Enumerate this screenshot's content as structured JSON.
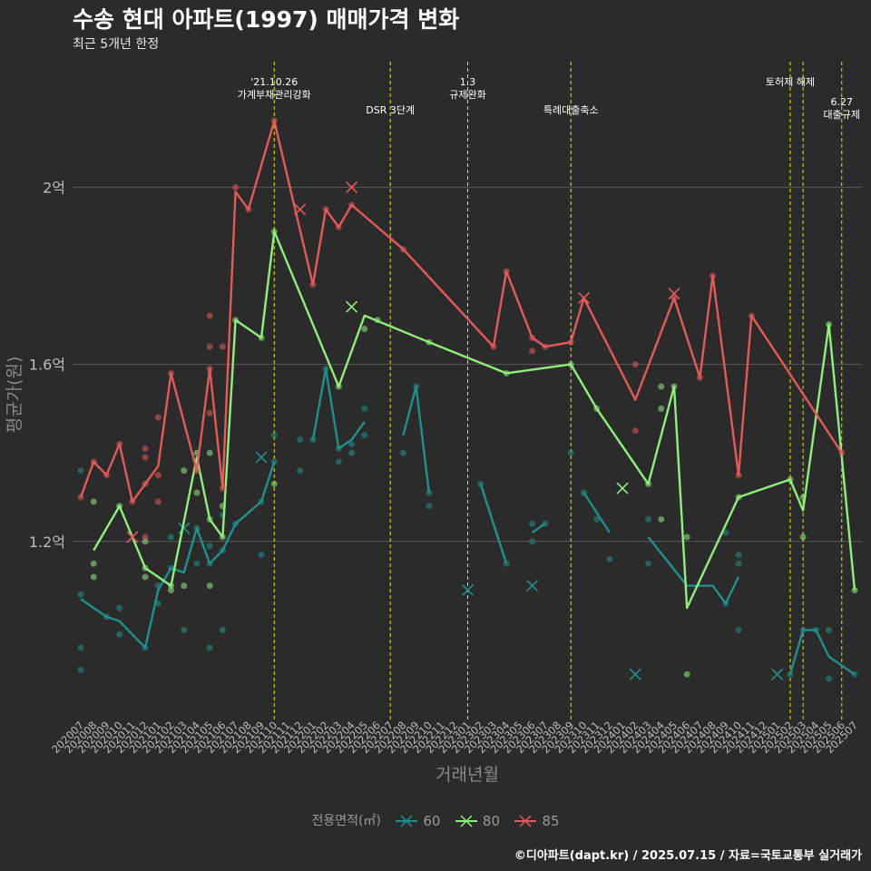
{
  "title": "수송 현대 아파트(1997) 매매가격 변화",
  "subtitle": "최근 5개년 한정",
  "caption": "©디아파트(dapt.kr) / 2025.07.15 / 자료=국토교통부 실거래가",
  "legend": {
    "title": "전용면적(㎡)",
    "entries": [
      {
        "label": "60",
        "color": "#21908c"
      },
      {
        "label": "80",
        "color": "#90ee7e"
      },
      {
        "label": "85",
        "color": "#e35a5a"
      }
    ]
  },
  "chart_data": {
    "type": "line",
    "xlabel": "거래년월",
    "ylabel": "평균가(원)",
    "ylim": [
      0.8,
      2.3
    ],
    "yticks": [
      {
        "value": 1.2,
        "label": "1.2억"
      },
      {
        "value": 1.6,
        "label": "1.6억"
      },
      {
        "value": 2.0,
        "label": "2억"
      }
    ],
    "grid": true,
    "legend_position": "bottom",
    "categories": [
      "202007",
      "202008",
      "202009",
      "202010",
      "202011",
      "202012",
      "202101",
      "202102",
      "202103",
      "202104",
      "202105",
      "202106",
      "202107",
      "202108",
      "202109",
      "202110",
      "202111",
      "202112",
      "202201",
      "202202",
      "202203",
      "202204",
      "202205",
      "202206",
      "202207",
      "202208",
      "202209",
      "202210",
      "202211",
      "202212",
      "202301",
      "202302",
      "202303",
      "202304",
      "202305",
      "202306",
      "202307",
      "202308",
      "202309",
      "202310",
      "202311",
      "202312",
      "202401",
      "202402",
      "202403",
      "202404",
      "202405",
      "202406",
      "202407",
      "202408",
      "202409",
      "202410",
      "202411",
      "202412",
      "202501",
      "202502",
      "202503",
      "202504",
      "202505",
      "202506",
      "202507"
    ],
    "series": [
      {
        "name": "60",
        "color": "#21908c",
        "line": [
          [
            "202007",
            1.07
          ],
          [
            "202009",
            1.03
          ],
          [
            "202010",
            1.02
          ],
          [
            "202012",
            0.96
          ],
          [
            "202101",
            1.09
          ],
          [
            "202102",
            1.14
          ],
          [
            "202103",
            1.13
          ],
          [
            "202104",
            1.23
          ],
          [
            "202105",
            1.15
          ],
          [
            "202106",
            1.18
          ],
          [
            "202107",
            1.24
          ],
          [
            "202109",
            1.29
          ],
          [
            "202110",
            1.38
          ],
          null,
          [
            "202201",
            1.43
          ],
          [
            "202202",
            1.59
          ],
          [
            "202203",
            1.41
          ],
          [
            "202204",
            1.43
          ],
          [
            "202205",
            1.47
          ],
          null,
          [
            "202208",
            1.44
          ],
          [
            "202209",
            1.55
          ],
          [
            "202210",
            1.31
          ],
          null,
          [
            "202302",
            1.33
          ],
          [
            "202304",
            1.15
          ],
          null,
          [
            "202306",
            1.22
          ],
          [
            "202307",
            1.24
          ],
          null,
          [
            "202310",
            1.31
          ],
          [
            "202312",
            1.22
          ],
          null,
          [
            "202403",
            1.21
          ],
          [
            "202406",
            1.1
          ],
          [
            "202408",
            1.1
          ],
          [
            "202409",
            1.06
          ],
          [
            "202410",
            1.12
          ],
          null,
          [
            "202502",
            0.9
          ],
          [
            "202503",
            1.0
          ],
          [
            "202504",
            1.0
          ],
          [
            "202505",
            0.94
          ],
          [
            "202507",
            0.9
          ]
        ],
        "points": [
          [
            "202007",
            1.36
          ],
          [
            "202007",
            1.08
          ],
          [
            "202007",
            0.96
          ],
          [
            "202007",
            0.91
          ],
          [
            "202009",
            1.03
          ],
          [
            "202010",
            1.05
          ],
          [
            "202010",
            0.99
          ],
          [
            "202012",
            0.96
          ],
          [
            "202101",
            1.06
          ],
          [
            "202101",
            1.1
          ],
          [
            "202102",
            1.21
          ],
          [
            "202102",
            1.14
          ],
          [
            "202103",
            1.0
          ],
          [
            "202104",
            1.23
          ],
          [
            "202104",
            1.15
          ],
          [
            "202105",
            1.19
          ],
          [
            "202105",
            1.15
          ],
          [
            "202105",
            0.96
          ],
          [
            "202106",
            1.18
          ],
          [
            "202106",
            1.26
          ],
          [
            "202106",
            1.0
          ],
          [
            "202107",
            1.24
          ],
          [
            "202109",
            1.29
          ],
          [
            "202109",
            1.17
          ],
          [
            "202110",
            1.38
          ],
          [
            "202110",
            1.44
          ],
          [
            "202112",
            1.36
          ],
          [
            "202112",
            1.43
          ],
          [
            "202201",
            1.43
          ],
          [
            "202202",
            1.59
          ],
          [
            "202203",
            1.38
          ],
          [
            "202203",
            1.41
          ],
          [
            "202204",
            1.4
          ],
          [
            "202204",
            1.42
          ],
          [
            "202205",
            1.44
          ],
          [
            "202205",
            1.5
          ],
          [
            "202208",
            1.4
          ],
          [
            "202209",
            1.55
          ],
          [
            "202210",
            1.31
          ],
          [
            "202210",
            1.28
          ],
          [
            "202302",
            1.33
          ],
          [
            "202304",
            1.15
          ],
          [
            "202306",
            1.2
          ],
          [
            "202306",
            1.24
          ],
          [
            "202307",
            1.24
          ],
          [
            "202309",
            1.4
          ],
          [
            "202310",
            1.31
          ],
          [
            "202311",
            1.25
          ],
          [
            "202312",
            1.16
          ],
          [
            "202403",
            1.25
          ],
          [
            "202403",
            1.15
          ],
          [
            "202409",
            1.06
          ],
          [
            "202409",
            1.22
          ],
          [
            "202410",
            1.17
          ],
          [
            "202410",
            1.15
          ],
          [
            "202410",
            1.0
          ],
          [
            "202502",
            0.9
          ],
          [
            "202503",
            1.0
          ],
          [
            "202504",
            1.0
          ],
          [
            "202505",
            0.89
          ],
          [
            "202505",
            1.0
          ],
          [
            "202507",
            0.9
          ]
        ],
        "crosses": [
          [
            "202109",
            1.39
          ],
          [
            "202103",
            1.23
          ],
          [
            "202301",
            1.09
          ],
          [
            "202306",
            1.1
          ],
          [
            "202402",
            0.9
          ],
          [
            "202501",
            0.9
          ]
        ]
      },
      {
        "name": "80",
        "color": "#90ee7e",
        "line": [
          [
            "202008",
            1.18
          ],
          [
            "202010",
            1.28
          ],
          [
            "202012",
            1.14
          ],
          [
            "202102",
            1.1
          ],
          [
            "202104",
            1.39
          ],
          [
            "202105",
            1.25
          ],
          [
            "202106",
            1.21
          ],
          [
            "202107",
            1.7
          ],
          [
            "202109",
            1.66
          ],
          [
            "202110",
            1.9
          ],
          [
            "202203",
            1.55
          ],
          [
            "202205",
            1.71
          ],
          [
            "202210",
            1.65
          ],
          [
            "202304",
            1.58
          ],
          [
            "202309",
            1.6
          ],
          [
            "202311",
            1.5
          ],
          [
            "202403",
            1.33
          ],
          [
            "202405",
            1.55
          ],
          [
            "202406",
            1.05
          ],
          [
            "202410",
            1.3
          ],
          [
            "202502",
            1.34
          ],
          [
            "202503",
            1.27
          ],
          [
            "202505",
            1.69
          ],
          [
            "202507",
            1.09
          ]
        ],
        "points": [
          [
            "202008",
            1.29
          ],
          [
            "202008",
            1.15
          ],
          [
            "202008",
            1.12
          ],
          [
            "202010",
            1.28
          ],
          [
            "202012",
            1.14
          ],
          [
            "202012",
            1.12
          ],
          [
            "202012",
            1.2
          ],
          [
            "202102",
            1.1
          ],
          [
            "202102",
            1.09
          ],
          [
            "202103",
            1.36
          ],
          [
            "202103",
            1.1
          ],
          [
            "202104",
            1.31
          ],
          [
            "202104",
            1.4
          ],
          [
            "202105",
            1.25
          ],
          [
            "202105",
            1.4
          ],
          [
            "202105",
            1.1
          ],
          [
            "202106",
            1.21
          ],
          [
            "202106",
            1.28
          ],
          [
            "202107",
            1.7
          ],
          [
            "202109",
            1.66
          ],
          [
            "202110",
            1.9
          ],
          [
            "202110",
            1.33
          ],
          [
            "202203",
            1.55
          ],
          [
            "202205",
            1.68
          ],
          [
            "202206",
            1.7
          ],
          [
            "202210",
            1.65
          ],
          [
            "202304",
            1.58
          ],
          [
            "202309",
            1.6
          ],
          [
            "202311",
            1.5
          ],
          [
            "202403",
            1.33
          ],
          [
            "202404",
            1.55
          ],
          [
            "202404",
            1.5
          ],
          [
            "202404",
            1.25
          ],
          [
            "202405",
            1.55
          ],
          [
            "202406",
            1.21
          ],
          [
            "202406",
            0.9
          ],
          [
            "202410",
            1.3
          ],
          [
            "202502",
            1.34
          ],
          [
            "202503",
            1.3
          ],
          [
            "202503",
            1.21
          ],
          [
            "202505",
            1.69
          ],
          [
            "202507",
            1.09
          ]
        ],
        "crosses": [
          [
            "202204",
            1.73
          ],
          [
            "202401",
            1.32
          ]
        ]
      },
      {
        "name": "85",
        "color": "#e35a5a",
        "line": [
          [
            "202007",
            1.3
          ],
          [
            "202008",
            1.38
          ],
          [
            "202009",
            1.35
          ],
          [
            "202010",
            1.42
          ],
          [
            "202011",
            1.29
          ],
          [
            "202012",
            1.33
          ],
          [
            "202101",
            1.37
          ],
          [
            "202102",
            1.58
          ],
          [
            "202104",
            1.36
          ],
          [
            "202105",
            1.59
          ],
          [
            "202106",
            1.32
          ],
          [
            "202107",
            1.99
          ],
          [
            "202108",
            1.95
          ],
          [
            "202110",
            2.15
          ],
          [
            "202201",
            1.78
          ],
          [
            "202202",
            1.95
          ],
          [
            "202203",
            1.91
          ],
          [
            "202204",
            1.96
          ],
          [
            "202208",
            1.86
          ],
          [
            "202303",
            1.64
          ],
          [
            "202304",
            1.81
          ],
          [
            "202306",
            1.66
          ],
          [
            "202307",
            1.64
          ],
          [
            "202309",
            1.65
          ],
          [
            "202310",
            1.75
          ],
          [
            "202402",
            1.52
          ],
          [
            "202405",
            1.75
          ],
          [
            "202407",
            1.57
          ],
          [
            "202408",
            1.8
          ],
          [
            "202410",
            1.35
          ],
          [
            "202411",
            1.71
          ],
          [
            "202506",
            1.4
          ]
        ],
        "points": [
          [
            "202007",
            1.3
          ],
          [
            "202008",
            1.38
          ],
          [
            "202009",
            1.35
          ],
          [
            "202010",
            1.42
          ],
          [
            "202011",
            1.29
          ],
          [
            "202012",
            1.41
          ],
          [
            "202012",
            1.39
          ],
          [
            "202012",
            1.33
          ],
          [
            "202012",
            1.21
          ],
          [
            "202101",
            1.48
          ],
          [
            "202101",
            1.35
          ],
          [
            "202101",
            1.29
          ],
          [
            "202102",
            1.58
          ],
          [
            "202104",
            1.36
          ],
          [
            "202105",
            1.71
          ],
          [
            "202105",
            1.64
          ],
          [
            "202105",
            1.59
          ],
          [
            "202105",
            1.49
          ],
          [
            "202106",
            1.64
          ],
          [
            "202106",
            1.32
          ],
          [
            "202107",
            2.0
          ],
          [
            "202108",
            1.95
          ],
          [
            "202110",
            2.15
          ],
          [
            "202201",
            1.78
          ],
          [
            "202202",
            1.95
          ],
          [
            "202203",
            1.91
          ],
          [
            "202204",
            1.96
          ],
          [
            "202208",
            1.86
          ],
          [
            "202303",
            1.64
          ],
          [
            "202304",
            1.81
          ],
          [
            "202306",
            1.66
          ],
          [
            "202306",
            1.63
          ],
          [
            "202307",
            1.64
          ],
          [
            "202309",
            1.65
          ],
          [
            "202402",
            1.6
          ],
          [
            "202402",
            1.45
          ],
          [
            "202405",
            1.75
          ],
          [
            "202407",
            1.57
          ],
          [
            "202408",
            1.8
          ],
          [
            "202410",
            1.35
          ],
          [
            "202411",
            1.71
          ],
          [
            "202506",
            1.4
          ]
        ],
        "crosses": [
          [
            "202011",
            1.21
          ],
          [
            "202112",
            1.95
          ],
          [
            "202204",
            2.0
          ],
          [
            "202310",
            1.75
          ],
          [
            "202405",
            1.76
          ]
        ]
      }
    ],
    "events": [
      {
        "month": "202110",
        "lines": [
          "'21.10.26",
          "가계부채관리강화"
        ],
        "level": 1
      },
      {
        "month": "202207",
        "lines": [
          "DSR 3단계"
        ],
        "level": 2
      },
      {
        "month": "202301",
        "lines": [
          "1.3",
          "규제완화"
        ],
        "level": 1
      },
      {
        "month": "202309",
        "lines": [
          "특례대출축소"
        ],
        "level": 2
      },
      {
        "month": "202502",
        "lines": [
          "토허제 해제"
        ],
        "level": 1
      },
      {
        "month": "202503",
        "lines": [],
        "level": 1
      },
      {
        "month": "202506",
        "lines": [
          "6.27",
          "대출규제"
        ],
        "level": 3
      }
    ]
  }
}
